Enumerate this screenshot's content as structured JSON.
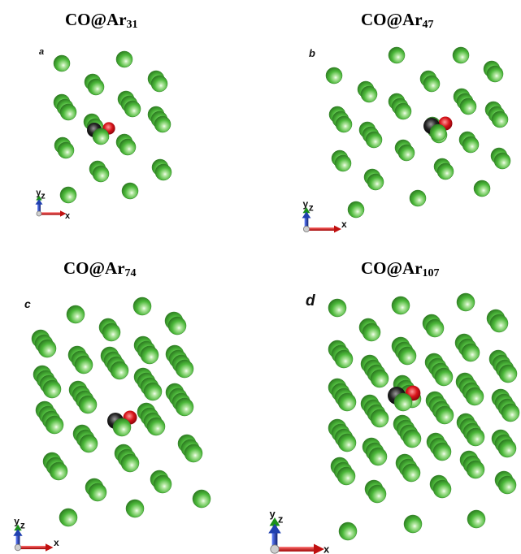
{
  "panels": [
    {
      "id": "a",
      "letter": "a",
      "title_base": "CO@Ar",
      "title_sub": "31",
      "axis_x": "x",
      "axis_y": "y",
      "axis_z": "z"
    },
    {
      "id": "b",
      "letter": "b",
      "title_base": "CO@Ar",
      "title_sub": "47",
      "axis_x": "x",
      "axis_y": "y",
      "axis_z": "z"
    },
    {
      "id": "c",
      "letter": "c",
      "title_base": "CO@Ar",
      "title_sub": "74",
      "axis_x": "x",
      "axis_y": "y",
      "axis_z": "z"
    },
    {
      "id": "d",
      "letter": "d",
      "title_base": "CO@Ar",
      "title_sub": "107",
      "axis_x": "x",
      "axis_y": "y",
      "axis_z": "z"
    }
  ],
  "colors": {
    "argon": "#4cb83a",
    "argon_highlight": "#eaffdf",
    "carbon": "#111111",
    "oxygen": "#d8141a",
    "axis_x": "#d82020",
    "axis_y": "#1aa01a",
    "axis_z": "#2040b0"
  }
}
